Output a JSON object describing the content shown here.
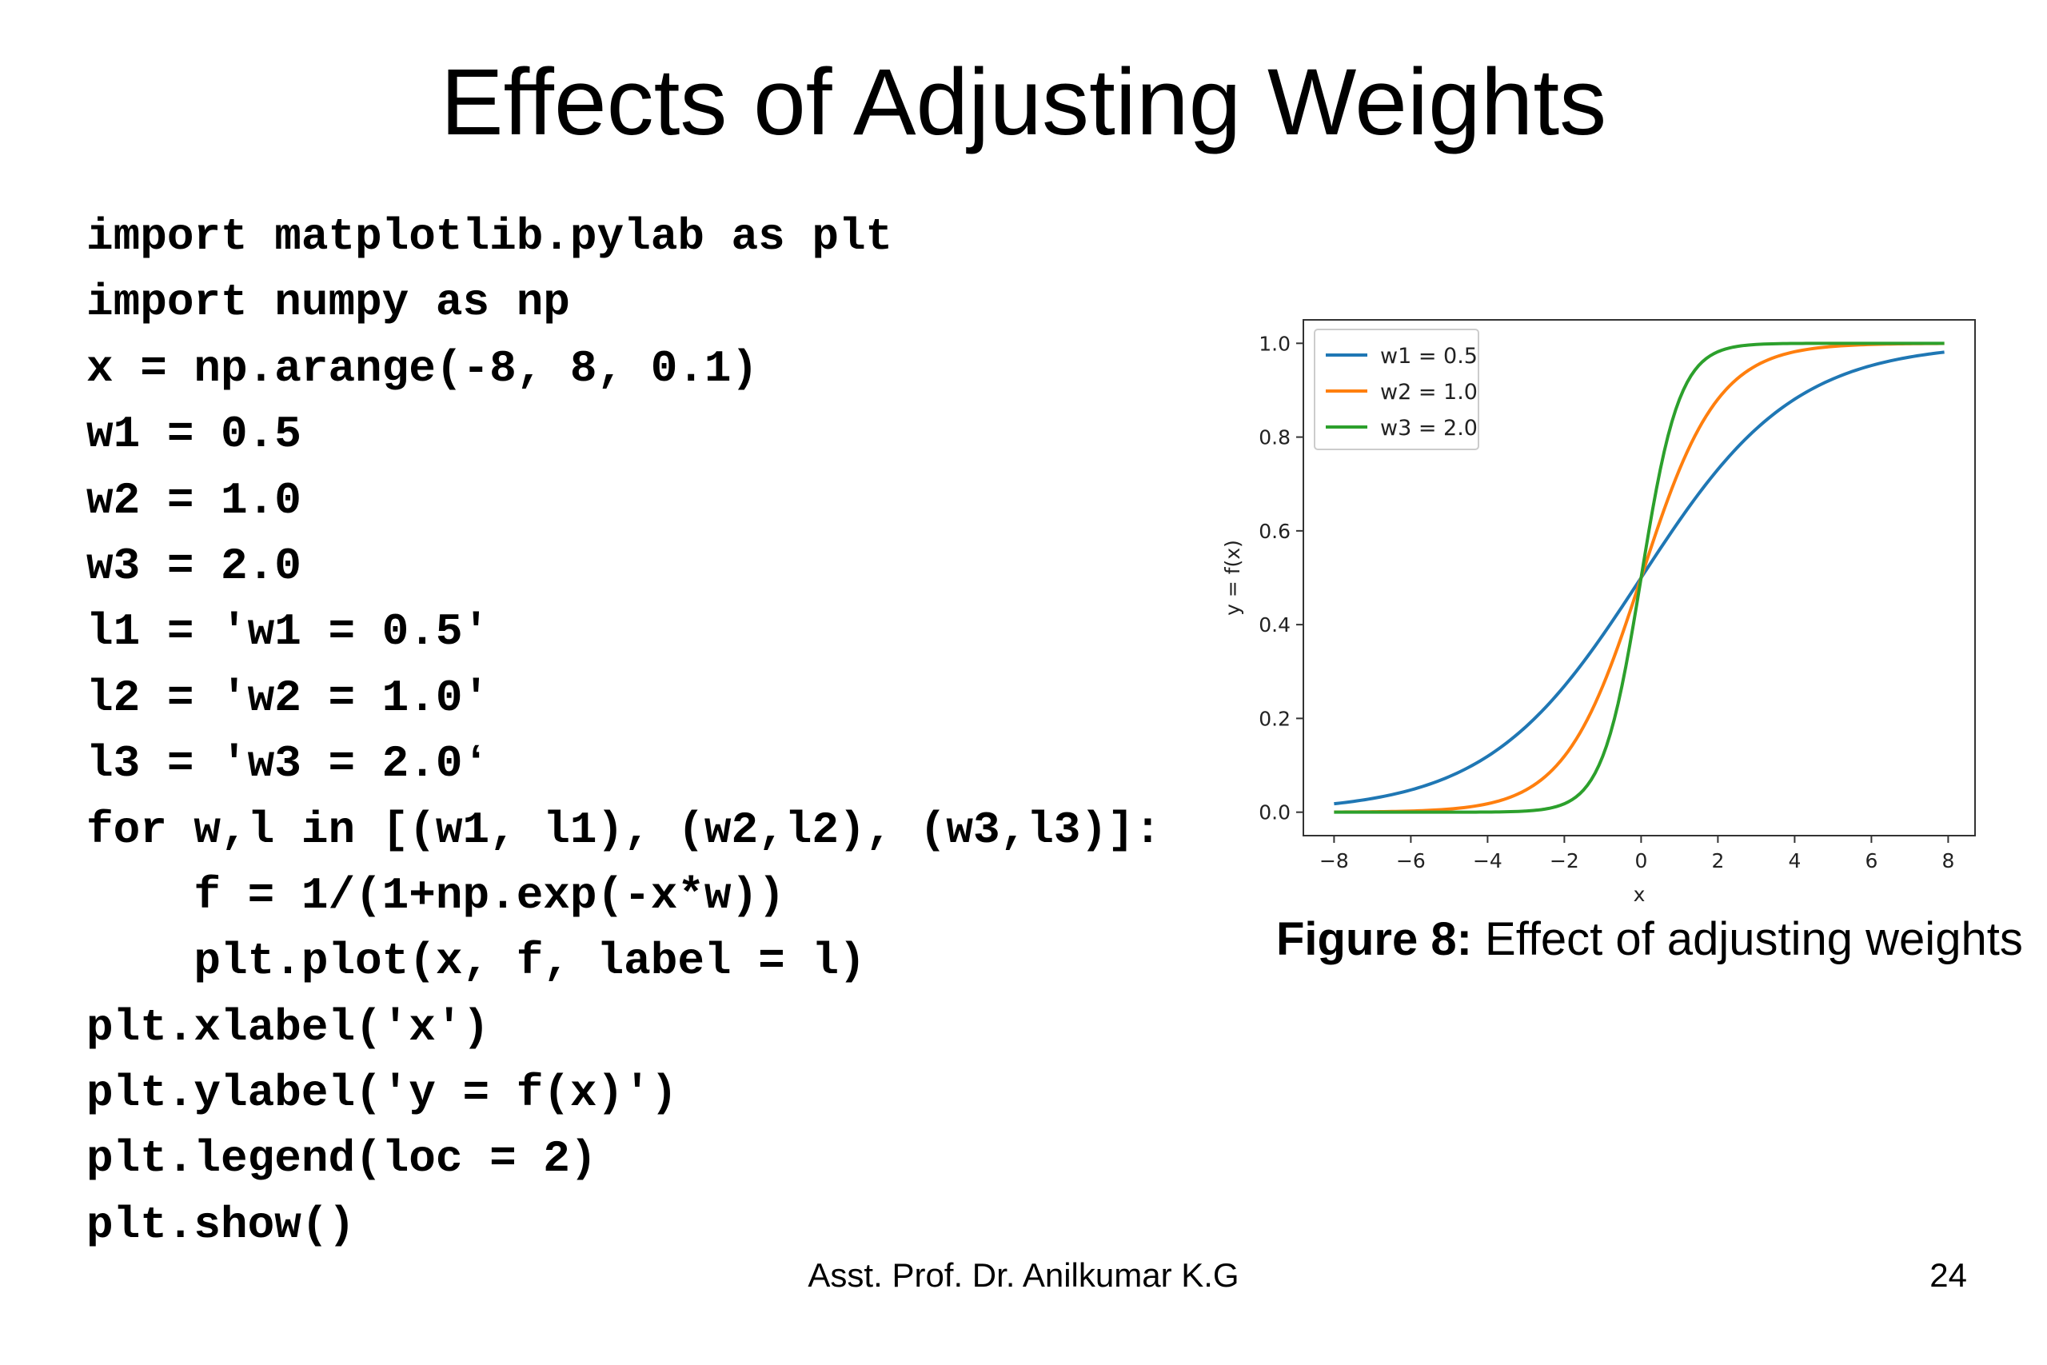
{
  "slide": {
    "title": "Effects of Adjusting Weights",
    "author": "Asst. Prof. Dr. Anilkumar K.G",
    "page_number": "24"
  },
  "code": {
    "lines": [
      "import matplotlib.pylab as plt",
      "import numpy as np",
      "x = np.arange(-8, 8, 0.1)",
      "w1 = 0.5",
      "w2 = 1.0",
      "w3 = 2.0",
      "l1 = 'w1 = 0.5'",
      "l2 = 'w2 = 1.0'",
      "l3 = 'w3 = 2.0ʻ",
      "for w,l in [(w1, l1), (w2,l2), (w3,l3)]:",
      "    f = 1/(1+np.exp(-x*w))",
      "    plt.plot(x, f, label = l)",
      "plt.xlabel('x')",
      "plt.ylabel('y = f(x)')",
      "plt.legend(loc = 2)",
      "plt.show()"
    ]
  },
  "figure": {
    "label": "Figure 8:",
    "caption": "Effect of adjusting weights"
  },
  "chart_data": {
    "type": "line",
    "function": "sigmoid f(x) = 1/(1+exp(-x*w))",
    "x_start": -8,
    "x_end": 7.9,
    "x_step": 0.1,
    "series": [
      {
        "name": "w1 = 0.5",
        "weight": 0.5,
        "color": "#1f77b4"
      },
      {
        "name": "w2 = 1.0",
        "weight": 1.0,
        "color": "#ff7f0e"
      },
      {
        "name": "w3 = 2.0",
        "weight": 2.0,
        "color": "#2ca02c"
      }
    ],
    "xlabel": "x",
    "ylabel": "y = f(x)",
    "xlim": [
      -8.8,
      8.7
    ],
    "ylim": [
      -0.05,
      1.05
    ],
    "xticks": [
      -8,
      -6,
      -4,
      -2,
      0,
      2,
      4,
      6,
      8
    ],
    "xtick_labels": [
      "−8",
      "−6",
      "−4",
      "−2",
      "0",
      "2",
      "4",
      "6",
      "8"
    ],
    "yticks": [
      0.0,
      0.2,
      0.4,
      0.6,
      0.8,
      1.0
    ],
    "ytick_labels": [
      "0.0",
      "0.2",
      "0.4",
      "0.6",
      "0.8",
      "1.0"
    ],
    "legend_loc": "upper left",
    "grid": false
  }
}
